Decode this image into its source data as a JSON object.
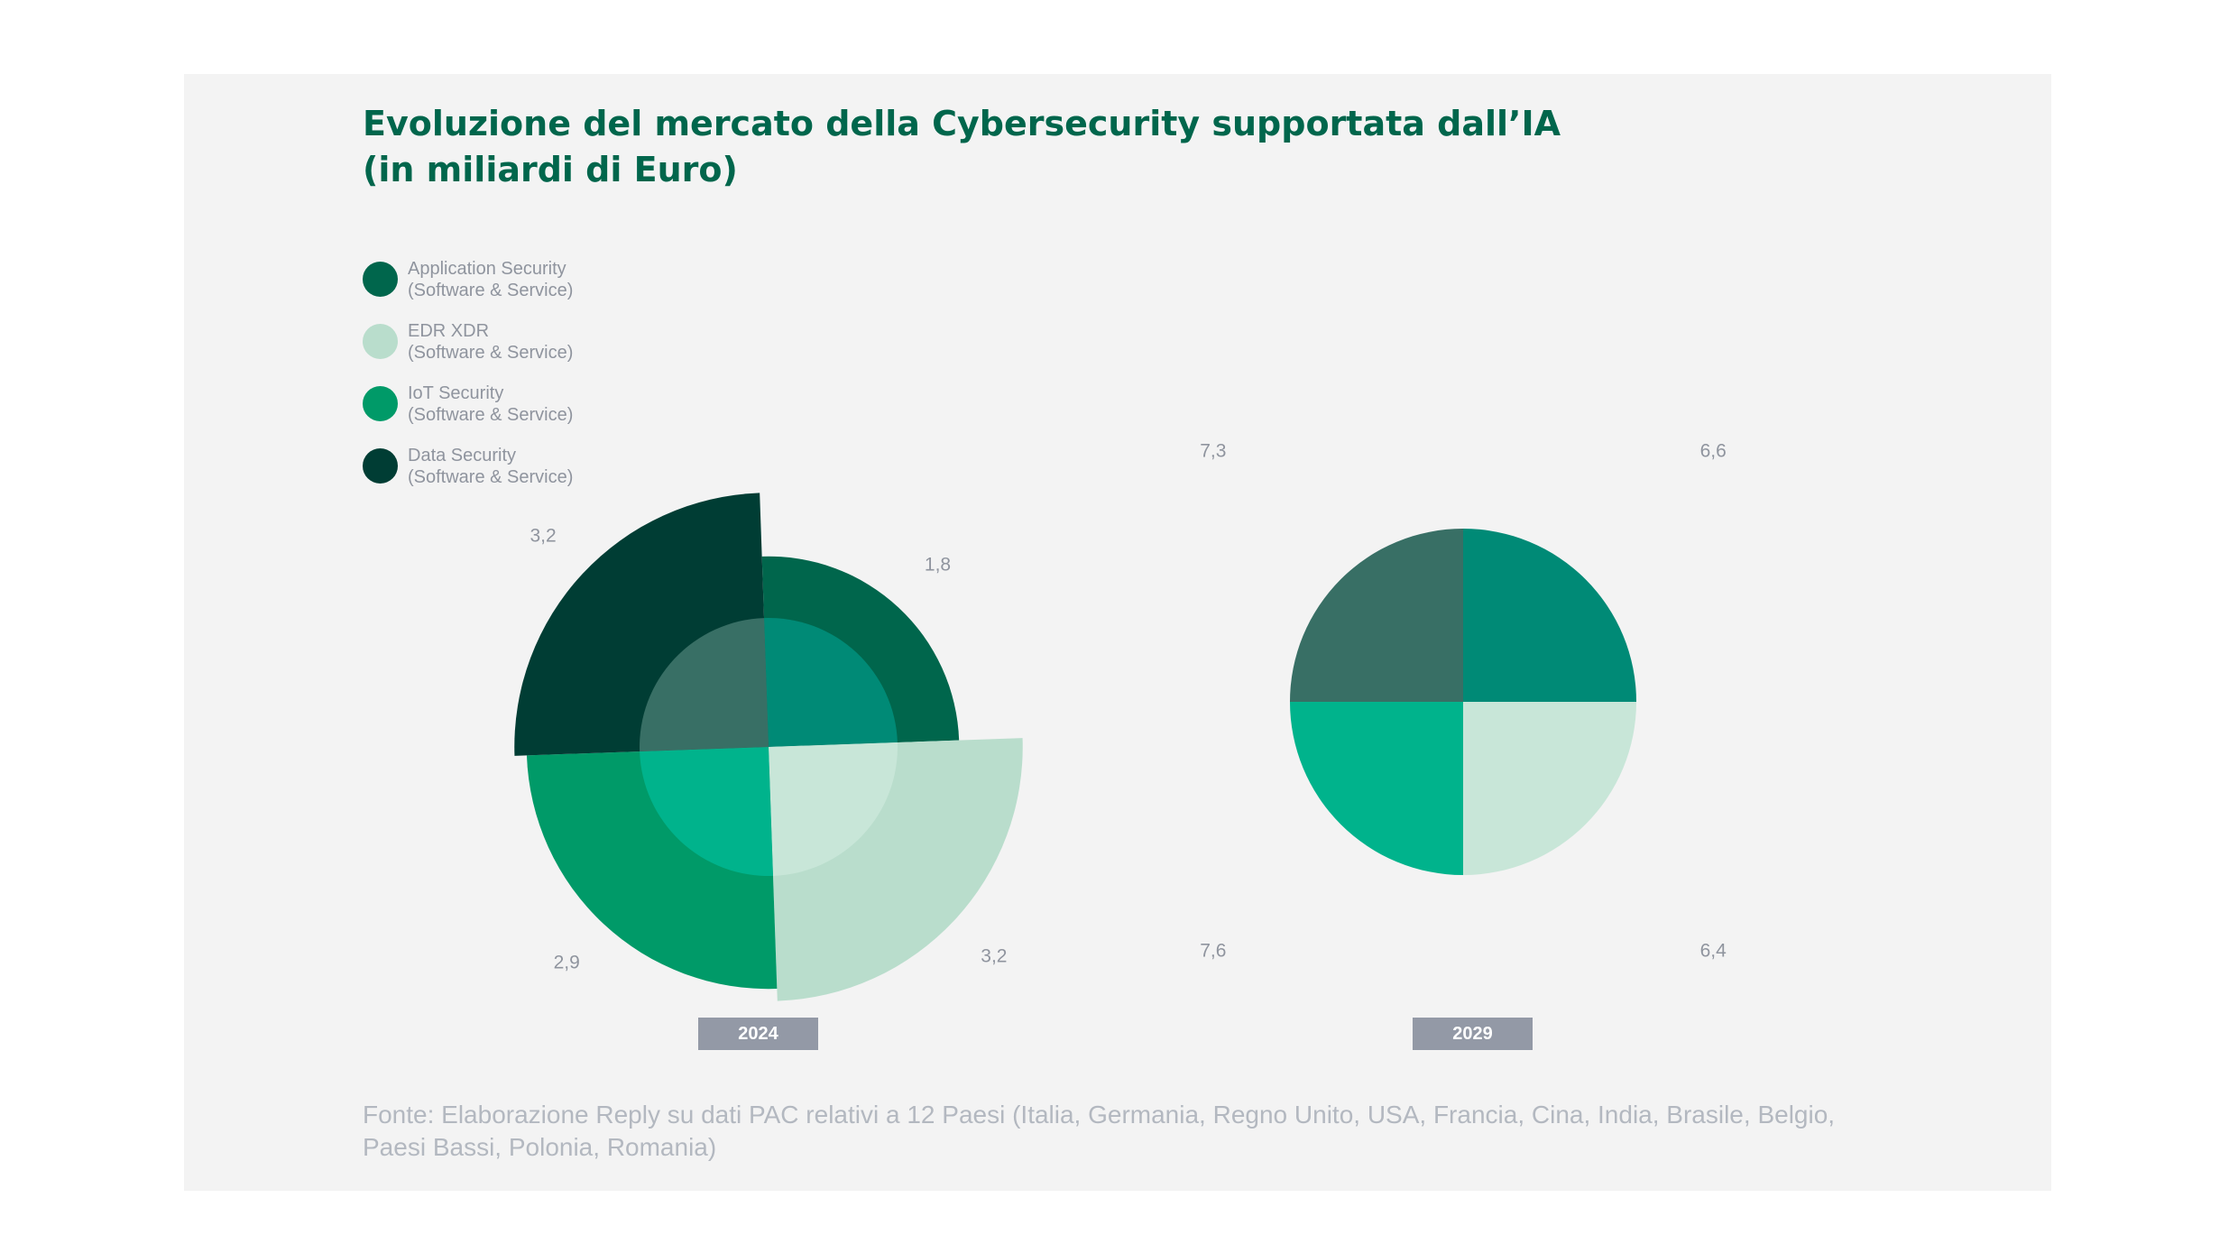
{
  "title_line1": "Evoluzione del mercato della Cybersecurity supportata dall’IA",
  "title_line2": "(in miliardi di Euro)",
  "legend": [
    {
      "line1": "Application Security",
      "line2": "(Software & Service)",
      "color": "#00664c"
    },
    {
      "line1": "EDR XDR",
      "line2": "(Software & Service)",
      "color": "#b9ddcc"
    },
    {
      "line1": "IoT Security",
      "line2": "(Software & Service)",
      "color": "#009a68"
    },
    {
      "line1": "Data Security",
      "line2": "(Software & Service)",
      "color": "#003d34"
    }
  ],
  "chart_data": [
    {
      "type": "polar-area",
      "year": "2024",
      "categories": [
        "Application Security",
        "EDR XDR",
        "IoT Security",
        "Data Security"
      ],
      "values": [
        1.8,
        3.2,
        2.9,
        3.2
      ],
      "labels": [
        "1,8",
        "3,2",
        "2,9",
        "3,2"
      ]
    },
    {
      "type": "polar-area",
      "year": "2029",
      "categories": [
        "Application Security",
        "EDR XDR",
        "IoT Security",
        "Data Security"
      ],
      "values": [
        6.6,
        6.4,
        7.6,
        7.3
      ],
      "labels": [
        "6,6",
        "6,4",
        "7,6",
        "7,3"
      ]
    }
  ],
  "inner_overlays": [
    "#008a76",
    "#c8e6d8",
    "#00b38c",
    "#386f65"
  ],
  "source": "Fonte: Elaborazione Reply su dati PAC relativi a 12 Paesi (Italia, Germania, Regno Unito, USA, Francia, Cina, India, Brasile, Belgio, Paesi Bassi, Polonia, Romania)"
}
